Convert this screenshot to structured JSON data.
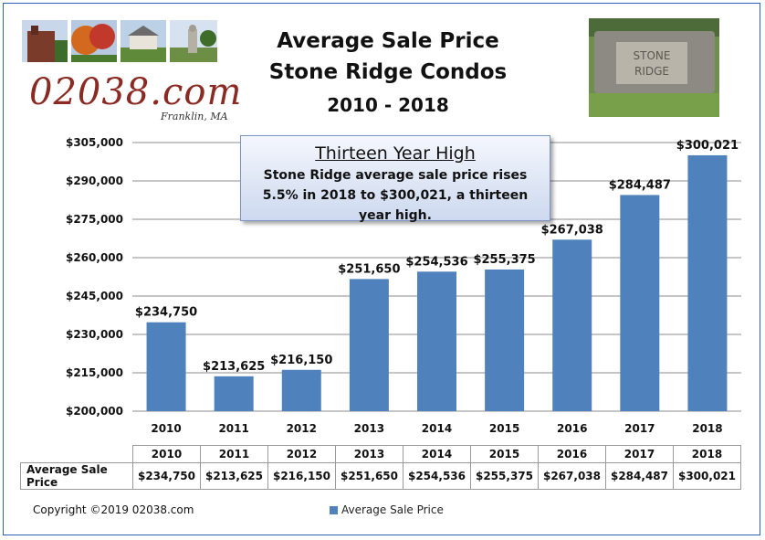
{
  "header": {
    "title_line1": "Average Sale Price",
    "title_line2": "Stone Ridge Condos",
    "title_line3": "2010 - 2018",
    "logo_text": "02038.com",
    "logo_subtext": "Franklin, MA",
    "sign_text": "STONE RIDGE"
  },
  "callout": {
    "heading": "Thirteen Year High",
    "body": "Stone Ridge average sale price rises 5.5% in 2018 to $300,021, a thirteen year high."
  },
  "chart_data": {
    "type": "bar",
    "title": "Average Sale Price Stone Ridge Condos 2010 - 2018",
    "categories": [
      "2010",
      "2011",
      "2012",
      "2013",
      "2014",
      "2015",
      "2016",
      "2017",
      "2018"
    ],
    "series": [
      {
        "name": "Average Sale Price",
        "values": [
          234750,
          213625,
          216150,
          251650,
          254536,
          255375,
          267038,
          284487,
          300021
        ],
        "labels": [
          "$234,750",
          "$213,625",
          "$216,150",
          "$251,650",
          "$254,536",
          "$255,375",
          "$267,038",
          "$284,487",
          "$300,021"
        ],
        "color": "#4f81bd"
      }
    ],
    "ylim": [
      200000,
      305000
    ],
    "yticks": [
      200000,
      215000,
      230000,
      245000,
      260000,
      275000,
      290000,
      305000
    ],
    "ytick_labels": [
      "$200,000",
      "$215,000",
      "$230,000",
      "$245,000",
      "$260,000",
      "$275,000",
      "$290,000",
      "$305,000"
    ],
    "grid": true,
    "legend_position": "bottom",
    "data_table": true
  },
  "table": {
    "row_label": "Average Sale Price"
  },
  "legend": {
    "label": "Average Sale Price"
  },
  "footer": {
    "copyright": "Copyright ©2019 02038.com"
  },
  "colors": {
    "bar": "#4f81bd",
    "frame": "#2b63b8",
    "logo": "#8b2a22"
  }
}
